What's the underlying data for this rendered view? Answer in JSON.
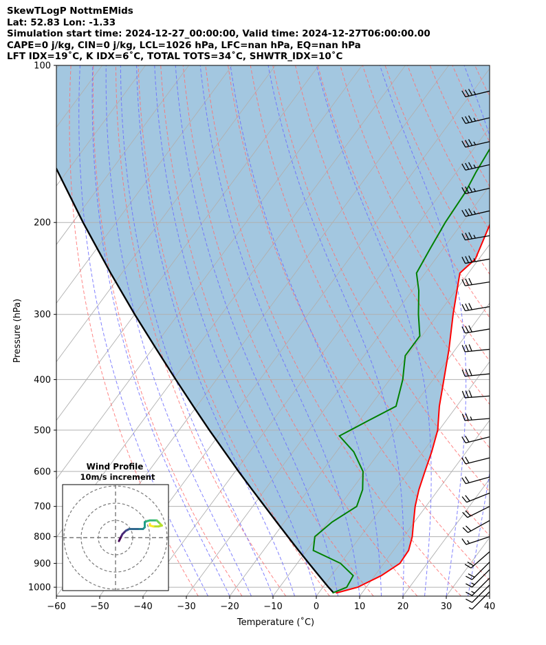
{
  "header": {
    "lines": [
      "SkewTLogP NottmEMids",
      "Lat: 52.83   Lon: -1.33",
      "Simulation start time: 2024-12-27_00:00:00, Valid time: 2024-12-27T06:00:00.00",
      "CAPE=0 j/kg, CIN=0 j/kg, LCL=1026 hPa, LFC=nan hPa, EQ=nan hPa",
      "LFT IDX=19˚C, K IDX=6˚C, TOTAL TOTS=34˚C, SHWTR_IDX=10˚C"
    ]
  },
  "colors": {
    "temperature": "#ff0000",
    "dewpoint": "#008000",
    "parcel": "#000000",
    "cape_fill": "#a3c7e0",
    "dry_adiabat": "#ff7070",
    "moist_adiabat": "#6a6aff",
    "isotherm": "#b0b0b0",
    "hodograph_inner": "#440154",
    "hodograph_outer": "#fde725"
  },
  "chart_data": [
    {
      "type": "line",
      "subtype": "skew-T log-P",
      "xlabel": "Temperature (˚C)",
      "ylabel": "Pressure (hPa)",
      "xlim": [
        -60,
        40
      ],
      "ylim": [
        1040,
        100
      ],
      "yscale": "log",
      "x_ticks": [
        -60,
        -50,
        -40,
        -30,
        -20,
        -10,
        0,
        10,
        20,
        30,
        40
      ],
      "x_tick_labels": [
        "−60",
        "−50",
        "−40",
        "−30",
        "−20",
        "−10",
        "0",
        "10",
        "20",
        "30",
        "40"
      ],
      "y_ticks": [
        100,
        200,
        300,
        400,
        500,
        600,
        700,
        800,
        900,
        1000
      ],
      "y_tick_labels": [
        "100",
        "200",
        "300",
        "400",
        "500",
        "600",
        "700",
        "800",
        "900",
        "1000"
      ],
      "grid": true,
      "series": [
        {
          "kind": "temperature",
          "points": [
            [
              1026,
              4.0
            ],
            [
              1000,
              8.0
            ],
            [
              950,
              11.5
            ],
            [
              900,
              13.7
            ],
            [
              850,
              13.5
            ],
            [
              800,
              12.0
            ],
            [
              750,
              9.8
            ],
            [
              700,
              7.5
            ],
            [
              650,
              5.5
            ],
            [
              600,
              3.8
            ],
            [
              550,
              2.0
            ],
            [
              500,
              -0.3
            ],
            [
              450,
              -4.0
            ],
            [
              400,
              -7.5
            ],
            [
              350,
              -11.5
            ],
            [
              300,
              -16.5
            ],
            [
              250,
              -22.0
            ],
            [
              235,
              -20.8
            ],
            [
              200,
              -23.5
            ],
            [
              175,
              -23.5
            ],
            [
              150,
              -25.5
            ],
            [
              125,
              -27.5
            ],
            [
              100,
              -29.0
            ]
          ]
        },
        {
          "kind": "dewpoint",
          "points": [
            [
              1026,
              3.2
            ],
            [
              1000,
              5.5
            ],
            [
              950,
              5.0
            ],
            [
              900,
              0.0
            ],
            [
              850,
              -8.5
            ],
            [
              800,
              -10.5
            ],
            [
              750,
              -9.0
            ],
            [
              700,
              -6.0
            ],
            [
              650,
              -7.5
            ],
            [
              600,
              -10.5
            ],
            [
              550,
              -16.0
            ],
            [
              513,
              -22.0
            ],
            [
              480,
              -18.0
            ],
            [
              450,
              -14.0
            ],
            [
              400,
              -17.0
            ],
            [
              360,
              -20.5
            ],
            [
              330,
              -20.5
            ],
            [
              300,
              -24.5
            ],
            [
              270,
              -28.5
            ],
            [
              250,
              -32.0
            ],
            [
              225,
              -33.0
            ],
            [
              200,
              -34.0
            ],
            [
              175,
              -34.5
            ],
            [
              160,
              -35.5
            ],
            [
              140,
              -36.5
            ],
            [
              125,
              -37.0
            ],
            [
              110,
              -37.5
            ],
            [
              100,
              -38.0
            ]
          ]
        },
        {
          "kind": "parcel",
          "points": [
            [
              1026,
              3.5
            ],
            [
              1000,
              1.3
            ],
            [
              950,
              -2.9
            ],
            [
              900,
              -7.3
            ],
            [
              850,
              -11.9
            ],
            [
              800,
              -16.7
            ],
            [
              750,
              -21.8
            ],
            [
              700,
              -27.2
            ],
            [
              650,
              -33.0
            ],
            [
              600,
              -39.2
            ],
            [
              550,
              -45.8
            ],
            [
              500,
              -53.0
            ],
            [
              450,
              -60.8
            ],
            [
              400,
              -69.4
            ],
            [
              350,
              -79.0
            ],
            [
              300,
              -90.0
            ],
            [
              250,
              -102.6
            ],
            [
              200,
              -117.6
            ],
            [
              150,
              -136.2
            ],
            [
              100,
              -161.5
            ]
          ]
        }
      ],
      "wind_barbs": {
        "pressures": [
          1020,
          990,
          960,
          925,
          895,
          855,
          800,
          745,
          700,
          660,
          615,
          565,
          515,
          475,
          430,
          390,
          350,
          320,
          290,
          260,
          235,
          212,
          190,
          172,
          155,
          140,
          126,
          112
        ],
        "u_kt": [
          5,
          8,
          10,
          12,
          14,
          16,
          15,
          18,
          20,
          20,
          18,
          20,
          20,
          25,
          28,
          30,
          30,
          30,
          30,
          32,
          34,
          34,
          35,
          36,
          36,
          35,
          34,
          33
        ],
        "v_kt": [
          5,
          8,
          10,
          12,
          14,
          14,
          5,
          10,
          10,
          8,
          5,
          5,
          5,
          2,
          2,
          3,
          3,
          5,
          5,
          5,
          6,
          6,
          8,
          8,
          8,
          8,
          8,
          8
        ],
        "calm_at": 900
      }
    },
    {
      "type": "scatter",
      "subtype": "hodograph",
      "title": "Wind Profile",
      "subtitle": "10m/s increment",
      "rings_ms": [
        10,
        20,
        30
      ],
      "axis_range_ms": [
        -30,
        30
      ],
      "points_ms": [
        [
          2,
          -2
        ],
        [
          2.5,
          -1
        ],
        [
          3,
          0
        ],
        [
          3.5,
          1
        ],
        [
          4,
          2
        ],
        [
          5,
          3
        ],
        [
          6,
          4
        ],
        [
          7,
          4.5
        ],
        [
          8,
          5
        ],
        [
          10,
          5
        ],
        [
          12,
          5
        ],
        [
          14,
          5
        ],
        [
          16,
          5
        ],
        [
          17,
          6
        ],
        [
          17,
          7.5
        ],
        [
          17,
          9
        ],
        [
          18,
          9.5
        ],
        [
          20,
          10
        ],
        [
          22,
          10
        ],
        [
          24,
          10
        ],
        [
          25,
          9
        ],
        [
          26,
          8
        ],
        [
          27,
          7
        ],
        [
          25,
          6.5
        ],
        [
          22,
          6.5
        ],
        [
          20,
          7
        ],
        [
          20,
          8
        ]
      ]
    }
  ]
}
